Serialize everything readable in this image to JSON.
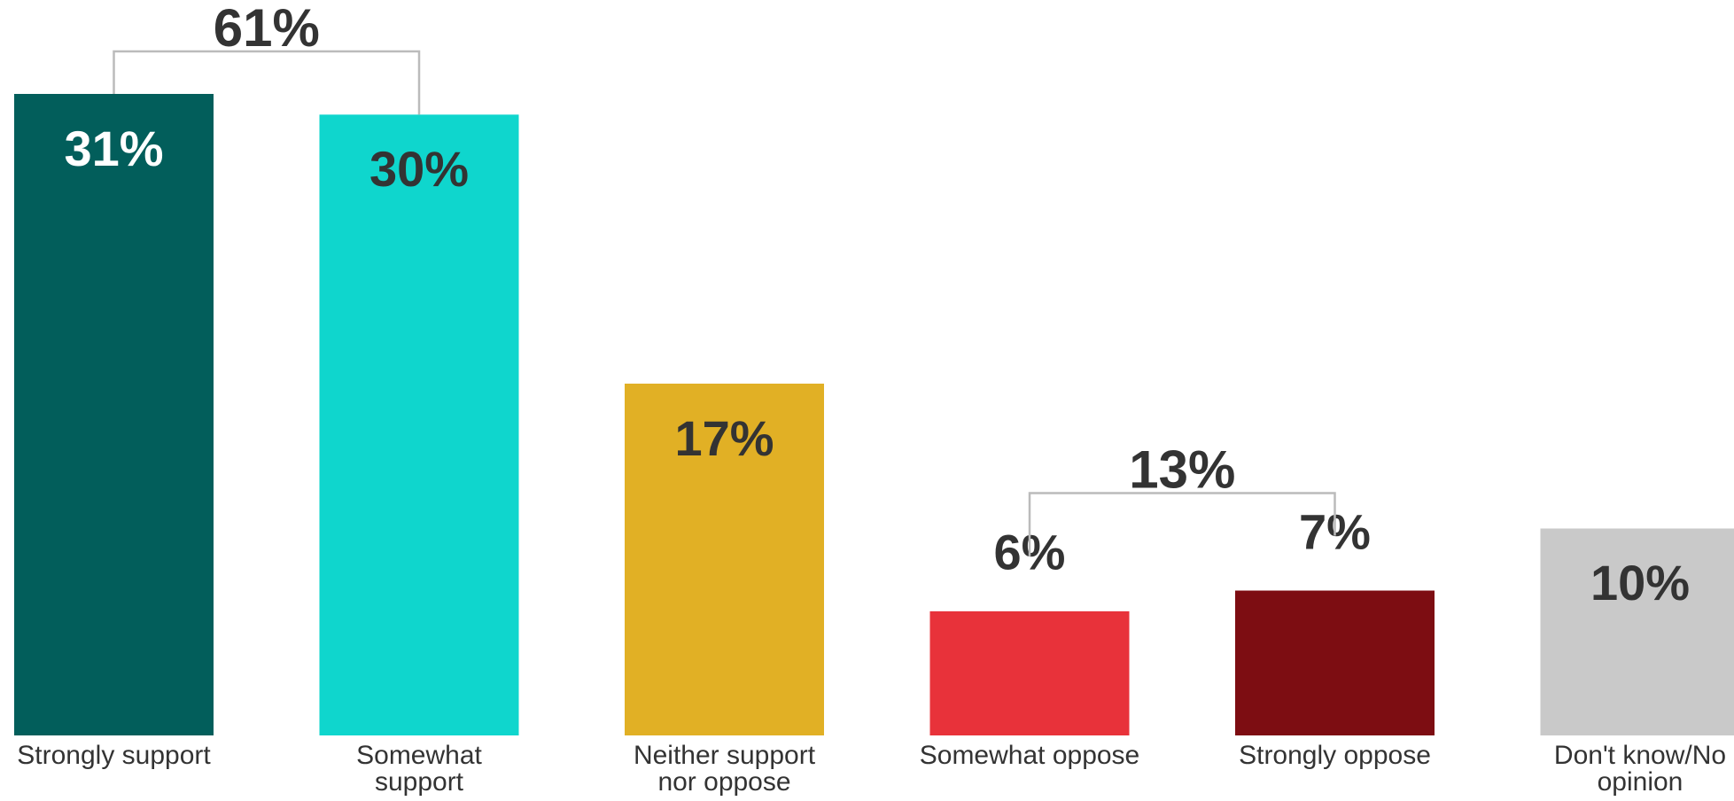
{
  "chart_data": {
    "type": "bar",
    "categories": [
      "Strongly support",
      "Somewhat support",
      "Neither support nor oppose",
      "Somewhat oppose",
      "Strongly oppose",
      "Don't know/No opinion"
    ],
    "values": [
      31,
      30,
      17,
      6,
      7,
      10
    ],
    "value_labels": [
      "31%",
      "30%",
      "17%",
      "6%",
      "7%",
      "10%"
    ],
    "colors": [
      "#025e5b",
      "#0fd6cd",
      "#e1b025",
      "#e8323a",
      "#7d0d12",
      "#c9c9c9"
    ],
    "value_label_colors": [
      "#ffffff",
      "#333333",
      "#333333",
      "#333333",
      "#333333",
      "#333333"
    ],
    "groups": [
      {
        "categories": [
          "Strongly support",
          "Somewhat support"
        ],
        "value": 61,
        "label": "61%"
      },
      {
        "categories": [
          "Somewhat oppose",
          "Strongly oppose"
        ],
        "value": 13,
        "label": "13%"
      }
    ]
  }
}
